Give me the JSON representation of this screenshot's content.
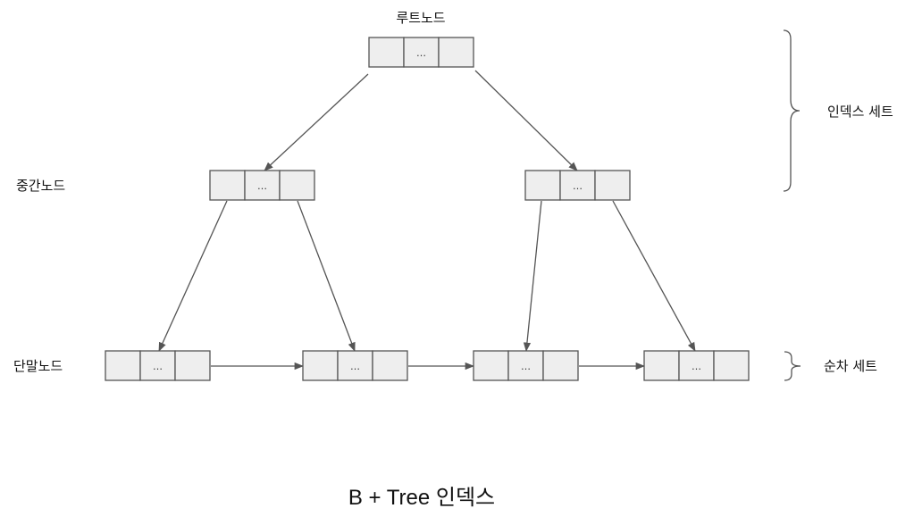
{
  "labels": {
    "root_node": "루트노드",
    "internal_node": "중간노드",
    "leaf_node": "단말노드",
    "index_set": "인덱스 세트",
    "sequence_set": "순차 세트"
  },
  "caption": "B + Tree 인덱스",
  "node_cell_text": "…",
  "colors": {
    "cell_fill": "#eeeeee",
    "stroke": "#555555",
    "text": "#111111"
  },
  "nodes": [
    {
      "id": "root",
      "level": "root"
    },
    {
      "id": "internal-left",
      "level": "internal"
    },
    {
      "id": "internal-right",
      "level": "internal"
    },
    {
      "id": "leaf-1",
      "level": "leaf"
    },
    {
      "id": "leaf-2",
      "level": "leaf"
    },
    {
      "id": "leaf-3",
      "level": "leaf"
    },
    {
      "id": "leaf-4",
      "level": "leaf"
    }
  ],
  "edges": [
    {
      "from": "root",
      "to": "internal-left"
    },
    {
      "from": "root",
      "to": "internal-right"
    },
    {
      "from": "internal-left",
      "to": "leaf-1"
    },
    {
      "from": "internal-left",
      "to": "leaf-2"
    },
    {
      "from": "internal-right",
      "to": "leaf-3"
    },
    {
      "from": "internal-right",
      "to": "leaf-4"
    },
    {
      "from": "leaf-1",
      "to": "leaf-2"
    },
    {
      "from": "leaf-2",
      "to": "leaf-3"
    },
    {
      "from": "leaf-3",
      "to": "leaf-4"
    }
  ]
}
